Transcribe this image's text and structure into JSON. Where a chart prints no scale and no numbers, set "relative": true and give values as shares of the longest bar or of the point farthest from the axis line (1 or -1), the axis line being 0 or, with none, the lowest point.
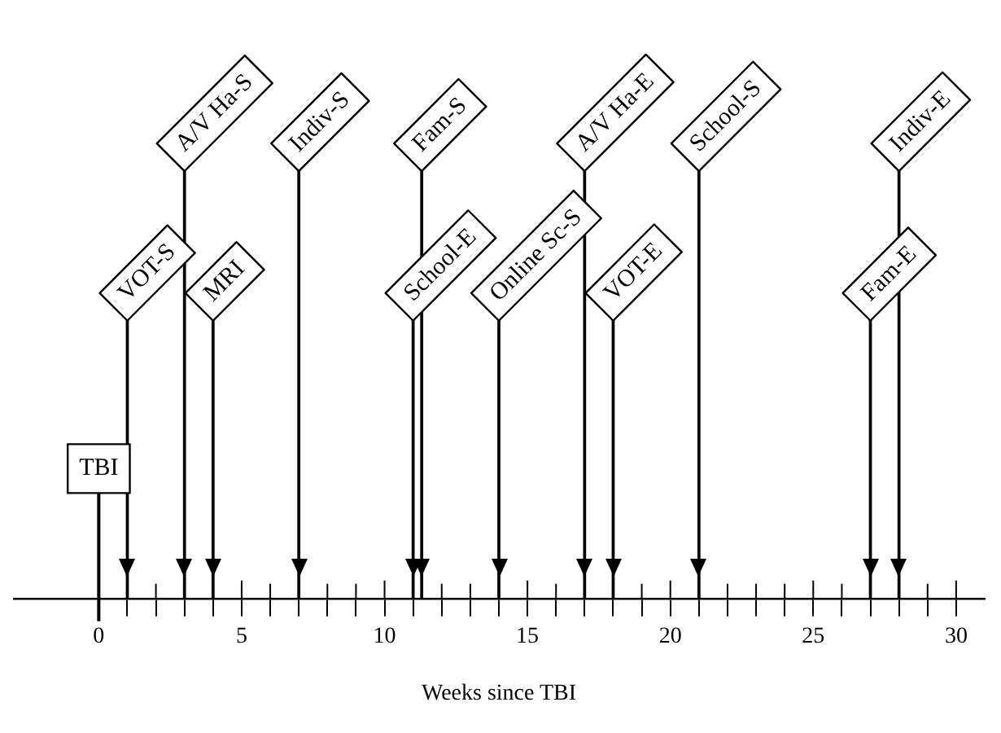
{
  "chart_data": {
    "type": "bar",
    "relative": true,
    "color": "#000000",
    "xlabel": "Weeks since TBI",
    "xlim": [
      -3,
      31
    ],
    "xticks": [
      0,
      {
        "value": 1,
        "label": null
      },
      {
        "value": 2,
        "label": null
      },
      {
        "value": 3,
        "label": null
      },
      {
        "value": 4,
        "label": null
      },
      5,
      {
        "value": 6,
        "label": null
      },
      {
        "value": 7,
        "label": null
      },
      {
        "value": 8,
        "label": null
      },
      {
        "value": 9,
        "label": null
      },
      10,
      {
        "value": 11,
        "label": null
      },
      {
        "value": 12,
        "label": null
      },
      {
        "value": 13,
        "label": null
      },
      {
        "value": 14,
        "label": null
      },
      15,
      {
        "value": 16,
        "label": null
      },
      {
        "value": 17,
        "label": null
      },
      {
        "value": 18,
        "label": null
      },
      {
        "value": 19,
        "label": null
      },
      20,
      {
        "value": 21,
        "label": null
      },
      {
        "value": 22,
        "label": null
      },
      {
        "value": 23,
        "label": null
      },
      {
        "value": 24,
        "label": null
      },
      25,
      {
        "value": 26,
        "label": null
      },
      {
        "value": 27,
        "label": null
      },
      {
        "value": 28,
        "label": null
      },
      {
        "value": 29,
        "label": null
      },
      30
    ],
    "x": [
      1,
      3,
      4,
      7,
      11,
      11.3,
      14,
      17,
      18,
      21,
      27,
      28
    ],
    "values": [
      0.65,
      1,
      0.65,
      1,
      0.65,
      1,
      0.65,
      1,
      0.65,
      1,
      0.65,
      1
    ],
    "ref_lines": [
      {
        "axis": "x",
        "value": 0,
        "label": "TBI"
      }
    ],
    "annotations": [
      {
        "text": "VOT-S",
        "x": 1,
        "y": 0.65
      },
      {
        "text": "A/V Ha-S",
        "x": 3,
        "y": 1
      },
      {
        "text": "MRI",
        "x": 4,
        "y": 0.65
      },
      {
        "text": "Indiv-S",
        "x": 7,
        "y": 1
      },
      {
        "text": "School-E",
        "x": 11,
        "y": 0.65
      },
      {
        "text": "Fam-S",
        "x": 11.3,
        "y": 1
      },
      {
        "text": "Online Sc-S",
        "x": 14,
        "y": 0.65
      },
      {
        "text": "A/V Ha-E",
        "x": 17,
        "y": 1
      },
      {
        "text": "VOT-E",
        "x": 18,
        "y": 0.65
      },
      {
        "text": "School-S",
        "x": 21,
        "y": 1
      },
      {
        "text": "Fam-E",
        "x": 27,
        "y": 0.65
      },
      {
        "text": "Indiv-E",
        "x": 28,
        "y": 1
      }
    ]
  }
}
